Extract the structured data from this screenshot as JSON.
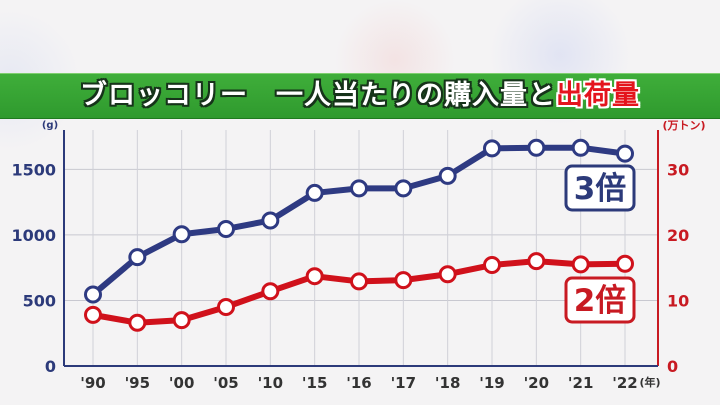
{
  "title": {
    "part1": "ブロッコリー　一人当たりの購入量と",
    "part2": "出荷量"
  },
  "chart_data": {
    "type": "line",
    "categories": [
      "'90",
      "'95",
      "'00",
      "'05",
      "'10",
      "'15",
      "'16",
      "'17",
      "'18",
      "'19",
      "'20",
      "'21",
      "'22"
    ],
    "x_unit": "(年)",
    "left_axis": {
      "unit": "(g)",
      "range": [
        0,
        1800
      ],
      "ticks": [
        0,
        500,
        1000,
        1500
      ],
      "color": "#2c3a7a"
    },
    "right_axis": {
      "unit": "(万トン)",
      "range": [
        0,
        36
      ],
      "ticks": [
        0,
        10,
        20,
        30
      ],
      "color": "#c81a22"
    },
    "grid": true,
    "series": [
      {
        "axis": "left",
        "color": "#2e3a82",
        "values": [
          545,
          830,
          1005,
          1045,
          1110,
          1320,
          1355,
          1355,
          1450,
          1660,
          1665,
          1665,
          1620
        ]
      },
      {
        "axis": "right",
        "color": "#d0111b",
        "values": [
          7.8,
          6.6,
          7.0,
          9.0,
          11.4,
          13.7,
          12.9,
          13.1,
          14.0,
          15.4,
          16.0,
          15.5,
          15.6
        ]
      }
    ],
    "annotations": [
      {
        "text": "3倍",
        "series": 0,
        "color": "#2c3a7a"
      },
      {
        "text": "2倍",
        "series": 1,
        "color": "#c81a22"
      }
    ]
  }
}
